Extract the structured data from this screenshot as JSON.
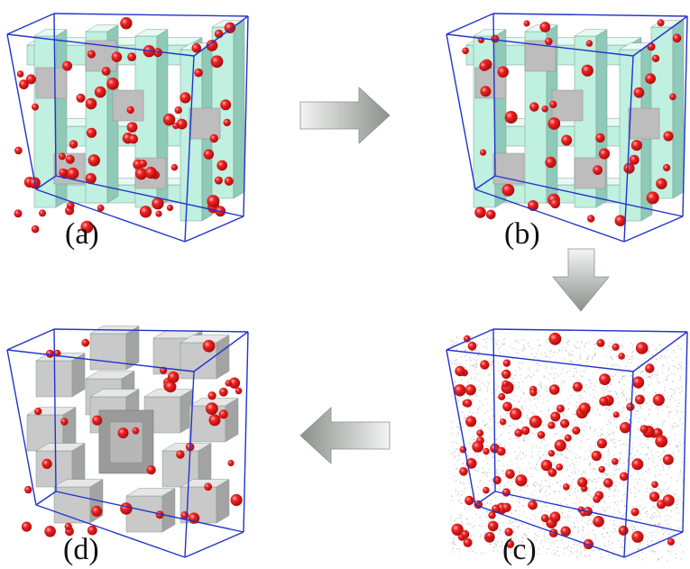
{
  "panels": [
    {
      "id": "a",
      "label": "(a)",
      "style": "wire-cyan",
      "dots": 70
    },
    {
      "id": "b",
      "label": "(b)",
      "style": "wire-cyan",
      "dots": 45
    },
    {
      "id": "c",
      "label": "(c)",
      "style": "scatter-cloud",
      "dots": 120
    },
    {
      "id": "d",
      "label": "(d)",
      "style": "block-grey",
      "dots": 40
    }
  ],
  "arrows": [
    {
      "id": "a-to-b",
      "direction": "right"
    },
    {
      "id": "b-to-c",
      "direction": "down"
    },
    {
      "id": "c-to-d",
      "direction": "left"
    }
  ],
  "colors": {
    "box_edge": "#2233cc",
    "particle": "#e11b1b",
    "strut_cyan": "#bff0e0",
    "strut_grey": "#c8c8c8",
    "cloud": "#9a9a9a",
    "arrow_light": "#f2f2f2",
    "arrow_dark": "#8d948f"
  }
}
